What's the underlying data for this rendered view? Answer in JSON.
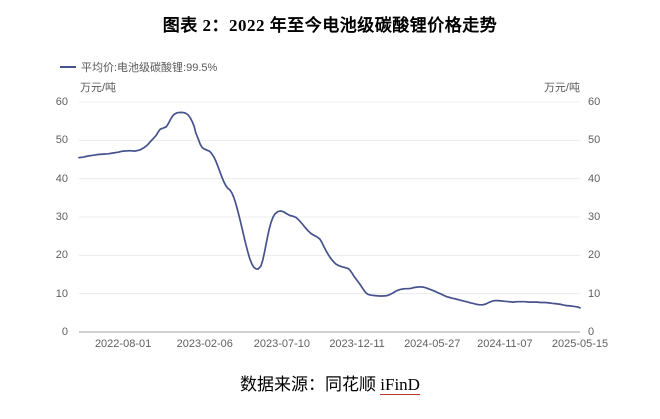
{
  "title": "图表 2：2022 年至今电池级碳酸锂价格走势",
  "legend": {
    "label": "平均价:电池级碳酸锂:99.5%"
  },
  "axes": {
    "unit_left": "万元/吨",
    "unit_right": "万元/吨"
  },
  "source": {
    "prefix": "数据来源：同花顺 ",
    "link_text": "iFinD"
  },
  "colors": {
    "line": "#46528c",
    "grid": "#ececec",
    "axis_line": "#a3a3a3",
    "tick_text": "#5f5f5f",
    "link_underline": "#c0392b"
  },
  "chart_data": {
    "type": "line",
    "title": "图表 2：2022 年至今电池级碳酸锂价格走势",
    "series_name": "平均价:电池级碳酸锂:99.5%",
    "ylabel": "万元/吨",
    "ylim": [
      0,
      60
    ],
    "y_ticks": [
      0,
      10,
      20,
      30,
      40,
      50,
      60
    ],
    "grid": "horizontal-only",
    "legend_position": "top-left",
    "x_tick_labels": [
      "2022-08-01",
      "2023-02-06",
      "2023-07-10",
      "2023-12-11",
      "2024-05-27",
      "2024-11-07",
      "2025-05-15"
    ],
    "x_tick_positions": [
      0.088,
      0.251,
      0.405,
      0.555,
      0.705,
      0.85,
      1.0
    ],
    "points": [
      [
        0.0,
        45.5
      ],
      [
        0.008,
        45.6
      ],
      [
        0.018,
        45.9
      ],
      [
        0.028,
        46.1
      ],
      [
        0.038,
        46.3
      ],
      [
        0.048,
        46.4
      ],
      [
        0.058,
        46.5
      ],
      [
        0.068,
        46.7
      ],
      [
        0.078,
        46.9
      ],
      [
        0.088,
        47.2
      ],
      [
        0.102,
        47.3
      ],
      [
        0.112,
        47.2
      ],
      [
        0.122,
        47.5
      ],
      [
        0.13,
        48.1
      ],
      [
        0.136,
        48.7
      ],
      [
        0.142,
        49.6
      ],
      [
        0.148,
        50.4
      ],
      [
        0.154,
        51.3
      ],
      [
        0.158,
        52.2
      ],
      [
        0.162,
        52.9
      ],
      [
        0.168,
        53.2
      ],
      [
        0.174,
        53.5
      ],
      [
        0.178,
        54.3
      ],
      [
        0.182,
        55.3
      ],
      [
        0.186,
        56.2
      ],
      [
        0.19,
        56.8
      ],
      [
        0.196,
        57.2
      ],
      [
        0.204,
        57.3
      ],
      [
        0.21,
        57.2
      ],
      [
        0.214,
        57.0
      ],
      [
        0.218,
        56.6
      ],
      [
        0.222,
        55.9
      ],
      [
        0.226,
        54.9
      ],
      [
        0.23,
        53.6
      ],
      [
        0.233,
        52.0
      ],
      [
        0.238,
        50.4
      ],
      [
        0.242,
        49.0
      ],
      [
        0.246,
        48.1
      ],
      [
        0.25,
        47.7
      ],
      [
        0.256,
        47.4
      ],
      [
        0.261,
        47.1
      ],
      [
        0.265,
        46.5
      ],
      [
        0.269,
        45.7
      ],
      [
        0.273,
        44.6
      ],
      [
        0.277,
        43.3
      ],
      [
        0.281,
        41.9
      ],
      [
        0.285,
        40.5
      ],
      [
        0.289,
        39.2
      ],
      [
        0.293,
        38.2
      ],
      [
        0.297,
        37.5
      ],
      [
        0.301,
        37.1
      ],
      [
        0.305,
        36.3
      ],
      [
        0.309,
        35.1
      ],
      [
        0.313,
        33.5
      ],
      [
        0.317,
        31.6
      ],
      [
        0.321,
        29.5
      ],
      [
        0.325,
        27.3
      ],
      [
        0.329,
        25.1
      ],
      [
        0.333,
        22.9
      ],
      [
        0.337,
        20.9
      ],
      [
        0.341,
        19.1
      ],
      [
        0.345,
        17.8
      ],
      [
        0.349,
        16.9
      ],
      [
        0.353,
        16.5
      ],
      [
        0.357,
        16.4
      ],
      [
        0.363,
        17.2
      ],
      [
        0.367,
        18.9
      ],
      [
        0.371,
        21.3
      ],
      [
        0.375,
        24.0
      ],
      [
        0.379,
        26.5
      ],
      [
        0.383,
        28.5
      ],
      [
        0.387,
        29.9
      ],
      [
        0.391,
        30.8
      ],
      [
        0.397,
        31.4
      ],
      [
        0.403,
        31.6
      ],
      [
        0.409,
        31.3
      ],
      [
        0.415,
        30.8
      ],
      [
        0.421,
        30.4
      ],
      [
        0.427,
        30.2
      ],
      [
        0.433,
        29.9
      ],
      [
        0.439,
        29.2
      ],
      [
        0.445,
        28.3
      ],
      [
        0.451,
        27.3
      ],
      [
        0.457,
        26.4
      ],
      [
        0.463,
        25.7
      ],
      [
        0.469,
        25.2
      ],
      [
        0.475,
        24.8
      ],
      [
        0.481,
        24.2
      ],
      [
        0.485,
        23.3
      ],
      [
        0.489,
        22.2
      ],
      [
        0.493,
        21.2
      ],
      [
        0.497,
        20.3
      ],
      [
        0.501,
        19.5
      ],
      [
        0.505,
        18.8
      ],
      [
        0.509,
        18.2
      ],
      [
        0.513,
        17.7
      ],
      [
        0.519,
        17.3
      ],
      [
        0.525,
        17.0
      ],
      [
        0.531,
        16.8
      ],
      [
        0.537,
        16.6
      ],
      [
        0.541,
        16.1
      ],
      [
        0.545,
        15.4
      ],
      [
        0.549,
        14.5
      ],
      [
        0.553,
        13.8
      ],
      [
        0.557,
        13.1
      ],
      [
        0.561,
        12.4
      ],
      [
        0.565,
        11.6
      ],
      [
        0.569,
        10.8
      ],
      [
        0.573,
        10.2
      ],
      [
        0.577,
        9.8
      ],
      [
        0.583,
        9.6
      ],
      [
        0.591,
        9.5
      ],
      [
        0.599,
        9.4
      ],
      [
        0.607,
        9.4
      ],
      [
        0.615,
        9.5
      ],
      [
        0.621,
        9.8
      ],
      [
        0.627,
        10.2
      ],
      [
        0.633,
        10.7
      ],
      [
        0.639,
        11.0
      ],
      [
        0.645,
        11.2
      ],
      [
        0.651,
        11.3
      ],
      [
        0.657,
        11.3
      ],
      [
        0.663,
        11.4
      ],
      [
        0.669,
        11.6
      ],
      [
        0.675,
        11.7
      ],
      [
        0.681,
        11.8
      ],
      [
        0.687,
        11.7
      ],
      [
        0.693,
        11.5
      ],
      [
        0.699,
        11.2
      ],
      [
        0.705,
        10.9
      ],
      [
        0.711,
        10.6
      ],
      [
        0.717,
        10.2
      ],
      [
        0.723,
        9.9
      ],
      [
        0.729,
        9.5
      ],
      [
        0.734,
        9.2
      ],
      [
        0.74,
        9.0
      ],
      [
        0.746,
        8.8
      ],
      [
        0.752,
        8.6
      ],
      [
        0.758,
        8.4
      ],
      [
        0.764,
        8.2
      ],
      [
        0.77,
        8.0
      ],
      [
        0.776,
        7.8
      ],
      [
        0.782,
        7.6
      ],
      [
        0.788,
        7.4
      ],
      [
        0.794,
        7.2
      ],
      [
        0.8,
        7.1
      ],
      [
        0.806,
        7.1
      ],
      [
        0.812,
        7.3
      ],
      [
        0.818,
        7.7
      ],
      [
        0.824,
        8.0
      ],
      [
        0.83,
        8.2
      ],
      [
        0.836,
        8.2
      ],
      [
        0.842,
        8.1
      ],
      [
        0.85,
        8.0
      ],
      [
        0.858,
        7.9
      ],
      [
        0.866,
        7.8
      ],
      [
        0.874,
        7.9
      ],
      [
        0.882,
        7.9
      ],
      [
        0.89,
        7.9
      ],
      [
        0.898,
        7.8
      ],
      [
        0.906,
        7.8
      ],
      [
        0.914,
        7.8
      ],
      [
        0.922,
        7.7
      ],
      [
        0.93,
        7.7
      ],
      [
        0.938,
        7.6
      ],
      [
        0.944,
        7.5
      ],
      [
        0.95,
        7.4
      ],
      [
        0.956,
        7.3
      ],
      [
        0.962,
        7.2
      ],
      [
        0.968,
        7.0
      ],
      [
        0.974,
        6.9
      ],
      [
        0.98,
        6.8
      ],
      [
        0.986,
        6.7
      ],
      [
        0.992,
        6.6
      ],
      [
        0.996,
        6.5
      ],
      [
        1.0,
        6.3
      ]
    ]
  }
}
